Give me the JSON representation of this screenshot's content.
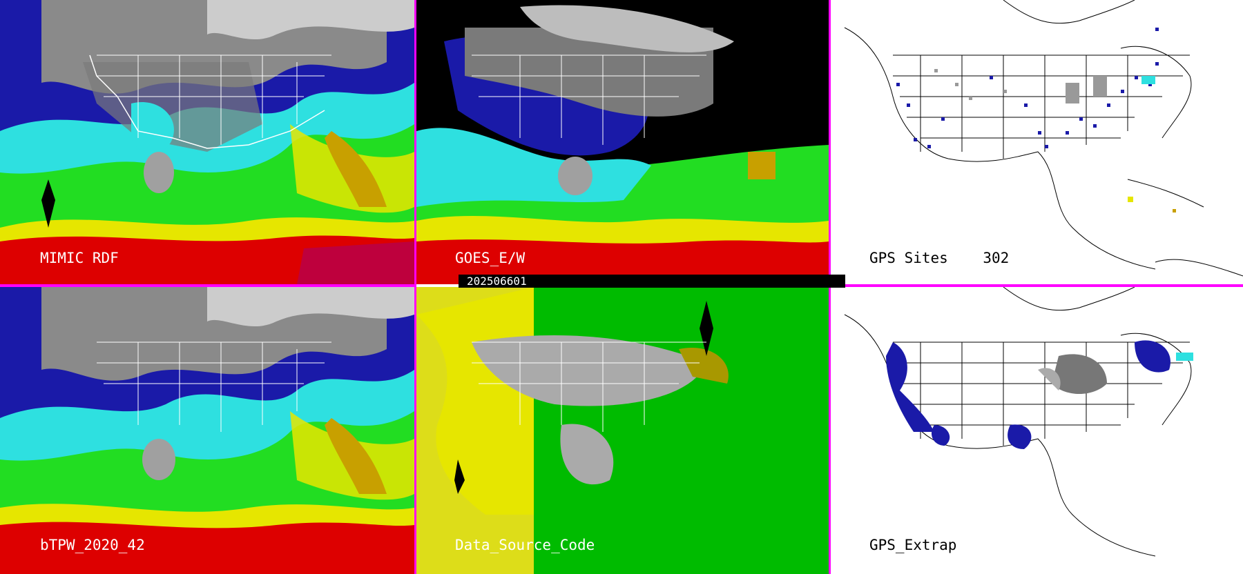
{
  "panels": {
    "mimic": {
      "title": "MIMIC RDF"
    },
    "goes": {
      "title": "GOES_E/W",
      "timestamp": "202506601"
    },
    "gps_sites": {
      "title": "GPS Sites",
      "count": "302"
    },
    "btpw": {
      "title": "bTPW_2020_42"
    },
    "data_source": {
      "title": "Data_Source_Code"
    },
    "gps_extrap": {
      "title": "GPS_Extrap"
    }
  },
  "colors": {
    "divider": "#ff00ff",
    "ocean_dry": "#1a1aa8",
    "ocean_cyan": "#2ee0e0",
    "green": "#22dd22",
    "yellow": "#e6e600",
    "orange": "#c8a000",
    "red": "#dd0000",
    "land_gray": "#9a9a9a",
    "source_green": "#00bb00",
    "source_yellow": "#e6e600",
    "source_gray": "#aaaaaa"
  },
  "icons": [
    "weather-map-image",
    "satellite-map-image",
    "gps-site-map-image"
  ]
}
